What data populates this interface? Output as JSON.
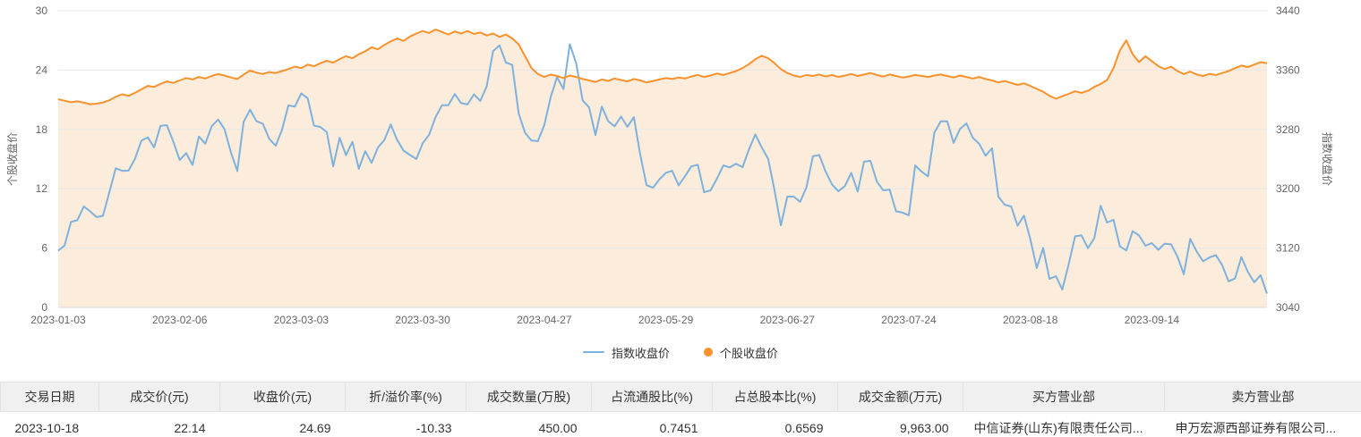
{
  "colors": {
    "index_line": "#7eb1dc",
    "stock_line": "#f9912c",
    "stock_fill": "#fcecdb",
    "grid": "#e8e8e8",
    "baseline": "#d9d9d9",
    "axis_text": "#666666",
    "table_header_bg": "#f0f0f0",
    "table_border": "#e2e2e2"
  },
  "chart_data": {
    "type": "line",
    "left_axis": {
      "title": "个股收盘价",
      "min": 0,
      "max": 30,
      "ticks": [
        0,
        6,
        12,
        18,
        24,
        30
      ]
    },
    "right_axis": {
      "title": "指数收盘价",
      "min": 3040,
      "max": 3440,
      "ticks": [
        3040,
        3120,
        3200,
        3280,
        3360,
        3440
      ]
    },
    "x_ticks": [
      {
        "label": "2023-01-03",
        "index": 0
      },
      {
        "label": "2023-02-06",
        "index": 19
      },
      {
        "label": "2023-03-03",
        "index": 38
      },
      {
        "label": "2023-03-30",
        "index": 57
      },
      {
        "label": "2023-04-27",
        "index": 76
      },
      {
        "label": "2023-05-29",
        "index": 95
      },
      {
        "label": "2023-06-27",
        "index": 114
      },
      {
        "label": "2023-07-24",
        "index": 133
      },
      {
        "label": "2023-08-18",
        "index": 152
      },
      {
        "label": "2023-09-14",
        "index": 171
      }
    ],
    "series": [
      {
        "name": "指数收盘价",
        "axis": "right",
        "color": "#7eb1dc",
        "values": [
          3116.5,
          3123.5,
          3155.2,
          3157.6,
          3176.1,
          3169.5,
          3161.8,
          3163.5,
          3195.3,
          3227.6,
          3224.2,
          3224.4,
          3240.3,
          3264.8,
          3269.3,
          3255.7,
          3284.9,
          3285.7,
          3263.4,
          3238.7,
          3248.1,
          3232.1,
          3270.4,
          3260.7,
          3284.2,
          3293.3,
          3280.5,
          3249.0,
          3224.0,
          3290.3,
          3306.5,
          3291.2,
          3287.5,
          3267.2,
          3258.0,
          3279.6,
          3312.4,
          3310.7,
          3328.4,
          3322.0,
          3285.1,
          3283.3,
          3276.1,
          3230.1,
          3268.7,
          3245.3,
          3263.3,
          3226.9,
          3250.6,
          3234.9,
          3255.7,
          3265.8,
          3286.7,
          3265.7,
          3251.4,
          3245.4,
          3240.1,
          3261.3,
          3272.9,
          3296.4,
          3312.6,
          3312.6,
          3327.7,
          3315.4,
          3313.6,
          3327.2,
          3318.4,
          3338.2,
          3385.6,
          3393.3,
          3370.1,
          3367.0,
          3301.3,
          3275.4,
          3264.9,
          3264.1,
          3285.9,
          3323.3,
          3350.5,
          3334.5,
          3395.0,
          3368.7,
          3319.2,
          3309.6,
          3272.4,
          3310.7,
          3291.0,
          3284.2,
          3297.3,
          3283.5,
          3296.5,
          3246.2,
          3204.8,
          3201.3,
          3212.5,
          3221.5,
          3224.2,
          3204.6,
          3216.7,
          3230.1,
          3232.4,
          3195.3,
          3197.8,
          3213.6,
          3231.4,
          3228.8,
          3233.7,
          3229.0,
          3252.9,
          3273.3,
          3255.8,
          3240.4,
          3197.9,
          3150.6,
          3189.4,
          3189.4,
          3182.4,
          3202.1,
          3244.0,
          3245.4,
          3223.0,
          3205.6,
          3196.6,
          3203.7,
          3221.4,
          3196.1,
          3236.5,
          3237.7,
          3209.6,
          3197.8,
          3198.8,
          3169.5,
          3167.8,
          3164.2,
          3231.5,
          3223.0,
          3216.7,
          3275.9,
          3291.0,
          3291.0,
          3261.7,
          3280.5,
          3288.1,
          3268.8,
          3260.6,
          3244.5,
          3254.6,
          3189.3,
          3178.4,
          3176.2,
          3150.1,
          3163.7,
          3132.0,
          3093.0,
          3120.3,
          3078.4,
          3082.2,
          3064.1,
          3098.6,
          3135.9,
          3137.1,
          3119.9,
          3133.3,
          3177.1,
          3154.4,
          3158.1,
          3122.4,
          3116.7,
          3142.8,
          3137.1,
          3123.1,
          3126.6,
          3117.7,
          3125.9,
          3125.0,
          3108.6,
          3084.7,
          3132.4,
          3115.6,
          3102.3,
          3107.3,
          3110.5,
          3096.9,
          3075.2,
          3079.0,
          3107.9,
          3088.1,
          3073.8,
          3083.5,
          3058.7
        ]
      },
      {
        "name": "个股收盘价",
        "axis": "left",
        "color": "#f9912c",
        "fill": "#fcecdb",
        "values": [
          21.05,
          20.9,
          20.75,
          20.85,
          20.7,
          20.55,
          20.6,
          20.72,
          20.95,
          21.3,
          21.55,
          21.4,
          21.7,
          22.05,
          22.4,
          22.3,
          22.6,
          22.85,
          22.7,
          22.95,
          23.2,
          23.05,
          23.3,
          23.15,
          23.4,
          23.6,
          23.45,
          23.25,
          23.1,
          23.55,
          23.95,
          23.75,
          23.6,
          23.8,
          23.7,
          23.9,
          24.1,
          24.35,
          24.2,
          24.55,
          24.4,
          24.7,
          24.95,
          24.75,
          25.1,
          25.4,
          25.2,
          25.6,
          25.9,
          26.3,
          26.1,
          26.55,
          26.9,
          27.2,
          26.95,
          27.4,
          27.7,
          27.95,
          27.75,
          28.1,
          27.85,
          27.6,
          27.9,
          27.7,
          27.95,
          27.65,
          27.8,
          27.5,
          27.7,
          27.35,
          27.6,
          27.2,
          26.6,
          25.4,
          24.2,
          23.6,
          23.3,
          23.55,
          23.4,
          23.2,
          23.45,
          23.3,
          23.1,
          22.95,
          22.8,
          23.05,
          22.9,
          23.15,
          23.0,
          22.85,
          23.1,
          22.95,
          22.75,
          22.9,
          23.05,
          23.2,
          23.1,
          23.25,
          23.15,
          23.35,
          23.5,
          23.3,
          23.45,
          23.65,
          23.5,
          23.7,
          23.9,
          24.2,
          24.6,
          25.1,
          25.45,
          25.2,
          24.7,
          24.1,
          23.7,
          23.45,
          23.3,
          23.5,
          23.4,
          23.55,
          23.35,
          23.5,
          23.3,
          23.45,
          23.6,
          23.4,
          23.55,
          23.7,
          23.5,
          23.35,
          23.55,
          23.4,
          23.25,
          23.35,
          23.5,
          23.4,
          23.3,
          23.45,
          23.55,
          23.4,
          23.25,
          23.45,
          23.3,
          23.15,
          23.3,
          23.1,
          22.95,
          22.75,
          22.9,
          22.7,
          22.5,
          22.65,
          22.4,
          22.1,
          21.8,
          21.4,
          21.1,
          21.35,
          21.6,
          21.85,
          21.7,
          21.9,
          22.3,
          22.6,
          23.0,
          24.2,
          26.0,
          27.0,
          25.6,
          24.8,
          25.4,
          24.9,
          24.4,
          24.1,
          24.35,
          23.9,
          23.6,
          23.85,
          23.55,
          23.4,
          23.6,
          23.5,
          23.7,
          23.9,
          24.2,
          24.45,
          24.3,
          24.55,
          24.8,
          24.69
        ]
      }
    ],
    "legend": [
      {
        "label": "指数收盘价",
        "marker": "line",
        "color": "#7eb1dc"
      },
      {
        "label": "个股收盘价",
        "marker": "dot",
        "color": "#f9912c"
      }
    ]
  },
  "table": {
    "headers": [
      "交易日期",
      "成交价(元)",
      "收盘价(元)",
      "折/溢价率(%)",
      "成交数量(万股)",
      "占流通股比(%)",
      "占总股本比(%)",
      "成交金额(万元)",
      "买方营业部",
      "卖方营业部"
    ],
    "rows": [
      [
        "2023-10-18",
        "22.14",
        "24.69",
        "-10.33",
        "450.00",
        "0.7451",
        "0.6569",
        "9,963.00",
        "中信证券(山东)有限责任公司...",
        "申万宏源西部证券有限公司..."
      ]
    ]
  }
}
